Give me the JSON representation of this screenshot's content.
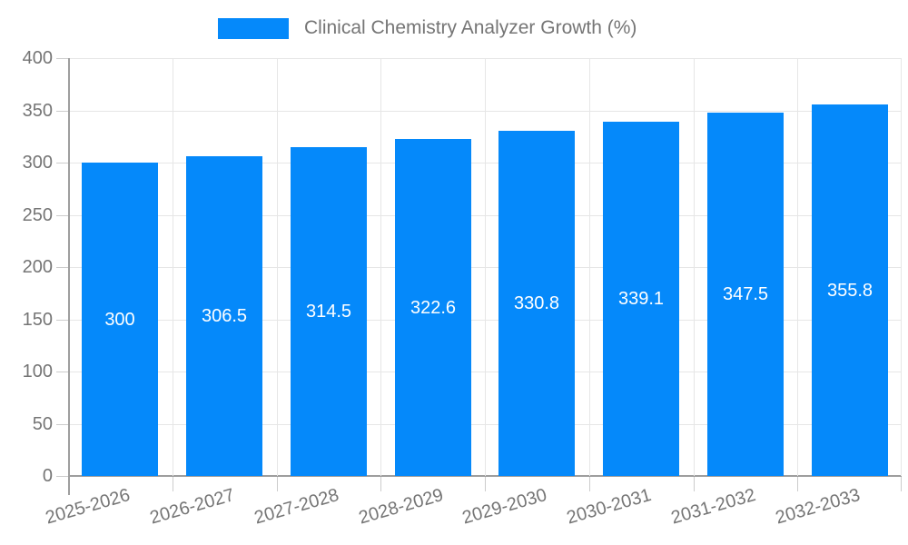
{
  "chart_data": {
    "type": "bar",
    "title": "Clinical Chemistry Analyzer Growth (%)",
    "legend": {
      "position": "top",
      "entries": [
        {
          "label": "Clinical Chemistry Analyzer Growth (%)",
          "color": "#0589fa"
        }
      ]
    },
    "categories": [
      "2025-2026",
      "2026-2027",
      "2027-2028",
      "2028-2029",
      "2029-2030",
      "2030-2031",
      "2031-2032",
      "2032-2033"
    ],
    "values": [
      300,
      306.5,
      314.5,
      322.6,
      330.8,
      339.1,
      347.5,
      355.8
    ],
    "value_labels": [
      "300",
      "306.5",
      "314.5",
      "322.6",
      "330.8",
      "339.1",
      "347.5",
      "355.8"
    ],
    "xlabel": "",
    "ylabel": "",
    "ylim": [
      0,
      400
    ],
    "ytick_step": 50,
    "ytick_labels": [
      "0",
      "50",
      "100",
      "150",
      "200",
      "250",
      "300",
      "350",
      "400"
    ],
    "grid": true,
    "colors": {
      "bar": "#0589fa",
      "grid": "#e6e6e6",
      "axis": "#9e9e9e",
      "tick": "#cccccc",
      "text": "#757575",
      "bar_label": "#ffffff",
      "background": "#ffffff"
    }
  }
}
